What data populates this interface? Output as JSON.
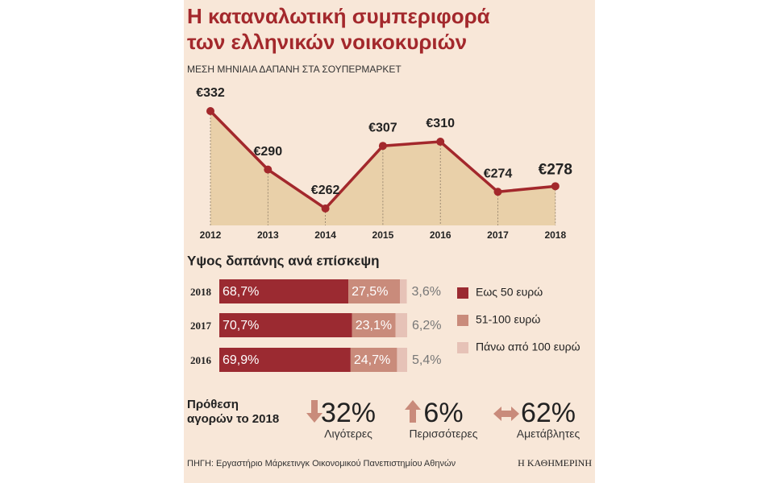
{
  "title": [
    "Η καταναλωτική συμπεριφορά",
    "των ελληνικών νοικοκυριών"
  ],
  "chart_data": [
    {
      "type": "area",
      "title": "ΜΕΣΗ ΜΗΝΙΑΙΑ ΔΑΠΑΝΗ ΣΤΑ ΣΟΥΠΕΡΜΑΡΚΕΤ",
      "categories": [
        "2012",
        "2013",
        "2014",
        "2015",
        "2016",
        "2017",
        "2018"
      ],
      "values": [
        332,
        290,
        262,
        307,
        310,
        274,
        278
      ],
      "value_labels": [
        "€332",
        "€290",
        "€262",
        "€307",
        "€310",
        "€274",
        "€278"
      ],
      "color": "#a3282c",
      "fill": "#e9d0a9"
    },
    {
      "type": "stacked-bar",
      "title": "Υψος δαπάνης ανά επίσκεψη",
      "categories": [
        "2018",
        "2017",
        "2016"
      ],
      "series": [
        {
          "name": "Εως 50 ευρώ",
          "color": "#9b2a31",
          "values": [
            68.7,
            70.7,
            69.9
          ],
          "value_labels": [
            "68,7%",
            "70,7%",
            "69,9%"
          ]
        },
        {
          "name": "51-100 ευρώ",
          "color": "#c98b7b",
          "values": [
            27.5,
            23.1,
            24.7
          ],
          "value_labels": [
            "27,5%",
            "23,1%",
            "24,7%"
          ]
        },
        {
          "name": "Πάνω από 100 ευρώ",
          "color": "#e6c2b7",
          "values": [
            3.6,
            6.2,
            5.4
          ],
          "value_labels": [
            "3,6%",
            "6,2%",
            "5,4%"
          ]
        }
      ]
    }
  ],
  "intention": {
    "title": [
      "Πρόθεση",
      "αγορών το 2018"
    ],
    "items": [
      {
        "figure": "32%",
        "label": "Λιγότερες"
      },
      {
        "figure": "6%",
        "label": "Περισσότερες"
      },
      {
        "figure": "62%",
        "label": "Αμετάβλητες"
      }
    ]
  },
  "source": "ΠΗΓΗ: Εργαστήριο Μάρκετινγκ Οικονομικού Πανεπιστημίου Αθηνών",
  "brand": "Η ΚΑΘΗΜΕΡΙΝΗ"
}
